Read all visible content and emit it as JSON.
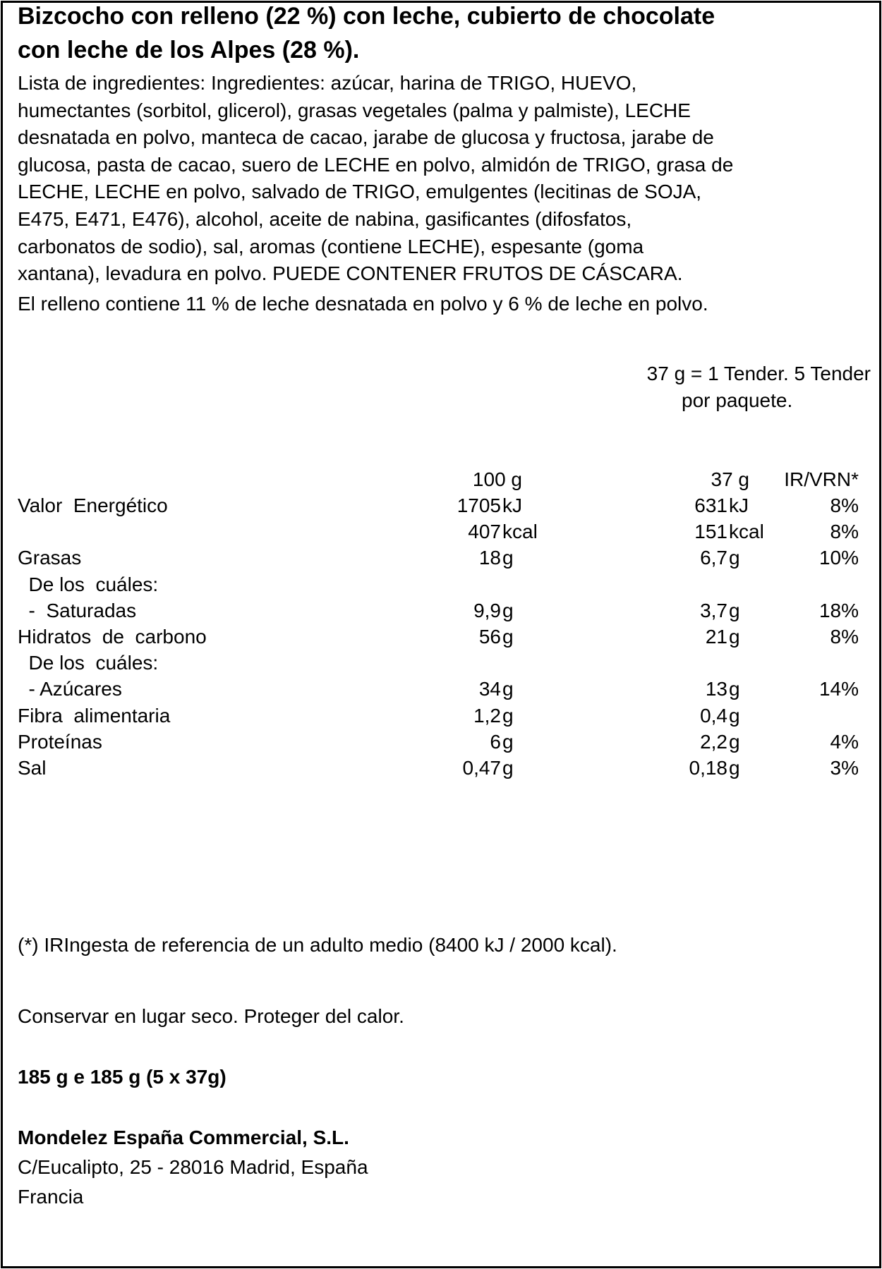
{
  "title": [
    "Bizcocho con relleno (22 %) con leche, cubierto de chocolate",
    "con leche de los Alpes (28 %)."
  ],
  "ingredients": [
    "Lista de ingredientes: Ingredientes: azúcar, harina de TRIGO, HUEVO,",
    "humectantes (sorbitol, glicerol), grasas vegetales (palma y palmiste), LECHE",
    "desnatada en polvo, manteca de cacao, jarabe de glucosa y fructosa, jarabe de",
    "glucosa, pasta de cacao, suero de LECHE en polvo, almidón de TRIGO, grasa de",
    "LECHE, LECHE en polvo, salvado de TRIGO, emulgentes (lecitinas de SOJA,",
    "E475, E471, E476), alcohol, aceite de nabina, gasificantes (difosfatos,",
    "carbonatos de sodio), sal, aromas (contiene LECHE), espesante (goma",
    "xantana), levadura en polvo. PUEDE CONTENER FRUTOS DE CÁSCARA."
  ],
  "filling_note": "El relleno contiene 11 % de leche desnatada en polvo y 6 % de leche en polvo.",
  "portion": [
    "37 g = 1 Tender. 5 Tender",
    "por paquete."
  ],
  "nutrition": {
    "headers": {
      "per100": "100 g",
      "perPortion": "37 g",
      "ir": "IR/VRN*"
    },
    "rows": [
      {
        "label": "Valor  Energético",
        "v100": "1705",
        "u100": "kJ",
        "vp": "631",
        "up": "kJ",
        "ir": "8%"
      },
      {
        "label": "",
        "v100": "407",
        "u100": "kcal",
        "vp": "151",
        "up": "kcal",
        "ir": "8%"
      },
      {
        "label": "Grasas",
        "v100": "18",
        "u100": "g",
        "vp": "6,7",
        "up": "g",
        "ir": "10%"
      },
      {
        "label": "  De los  cuáles:",
        "v100": "",
        "u100": "",
        "vp": "",
        "up": "",
        "ir": ""
      },
      {
        "label": "  -  Saturadas",
        "v100": "9,9",
        "u100": "g",
        "vp": "3,7",
        "up": "g",
        "ir": "18%"
      },
      {
        "label": "Hidratos  de  carbono",
        "v100": "56",
        "u100": "g",
        "vp": "21",
        "up": "g",
        "ir": "8%"
      },
      {
        "label": "  De los  cuáles:",
        "v100": "",
        "u100": "",
        "vp": "",
        "up": "",
        "ir": ""
      },
      {
        "label": "  - Azúcares",
        "v100": "34",
        "u100": "g",
        "vp": "13",
        "up": "g",
        "ir": "14%"
      },
      {
        "label": "Fibra  alimentaria",
        "v100": "1,2",
        "u100": "g",
        "vp": "0,4",
        "up": "g",
        "ir": ""
      },
      {
        "label": "Proteínas",
        "v100": "6",
        "u100": "g",
        "vp": "2,2",
        "up": "g",
        "ir": "4%"
      },
      {
        "label": "Sal",
        "v100": "0,47",
        "u100": "g",
        "vp": "0,18",
        "up": "g",
        "ir": "3%"
      }
    ]
  },
  "footnote": "(*) IRIngesta de referencia de un adulto medio (8400 kJ / 2000 kcal).",
  "storage": "Conservar en lugar seco. Proteger del calor.",
  "net_weight": "185 g e 185 g (5 x 37g)",
  "company": {
    "name": "Mondelez España Commercial, S.L.",
    "address": "C/Eucalipto, 25  - 28016 Madrid,  España",
    "country": "Francia"
  }
}
